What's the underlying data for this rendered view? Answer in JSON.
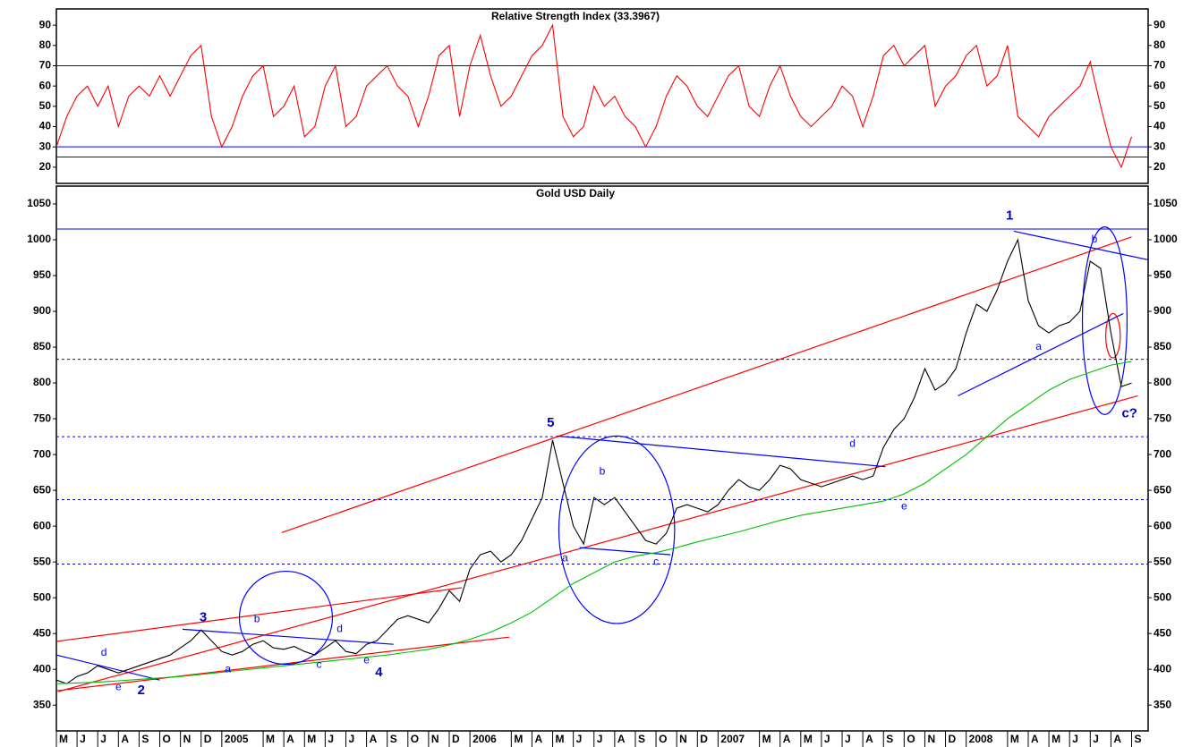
{
  "chart_data": [
    {
      "type": "line",
      "title": "Relative Strength Index (33.3967)",
      "xlim": [
        0,
        52.8
      ],
      "ylim": [
        12,
        98
      ],
      "yticks": [
        20,
        30,
        40,
        50,
        60,
        70,
        80,
        90
      ],
      "hlines": [
        {
          "value": 70,
          "color": "#0000ff",
          "dashed": false
        },
        {
          "value": 30,
          "color": "#0000ff",
          "dashed": false
        },
        {
          "value": 25,
          "color": "#0000ff",
          "dashed": false
        }
      ],
      "series": [
        {
          "name": "RSI",
          "color": "#ff0000",
          "x": [
            0,
            0.5,
            1,
            1.5,
            2,
            2.5,
            3,
            3.5,
            4,
            4.5,
            5,
            5.5,
            6,
            6.5,
            7,
            7.5,
            8,
            8.5,
            9,
            9.5,
            10,
            10.5,
            11,
            11.5,
            12,
            12.5,
            13,
            13.5,
            14,
            14.5,
            15,
            15.5,
            16,
            16.5,
            17,
            17.5,
            18,
            18.5,
            19,
            19.5,
            20,
            20.5,
            21,
            21.5,
            22,
            22.5,
            23,
            23.5,
            24,
            24.5,
            25,
            25.5,
            26,
            26.5,
            27,
            27.5,
            28,
            28.5,
            29,
            29.5,
            30,
            30.5,
            31,
            31.5,
            32,
            32.5,
            33,
            33.5,
            34,
            34.5,
            35,
            35.5,
            36,
            36.5,
            37,
            37.5,
            38,
            38.5,
            39,
            39.5,
            40,
            40.5,
            41,
            41.5,
            42,
            42.5,
            43,
            43.5,
            44,
            44.5,
            45,
            45.5,
            46,
            46.5,
            47,
            47.5,
            48,
            48.5,
            49,
            49.5,
            50,
            50.5,
            51,
            51.5,
            52
          ],
          "values": [
            30,
            45,
            55,
            60,
            50,
            60,
            40,
            55,
            60,
            55,
            65,
            55,
            65,
            75,
            80,
            45,
            30,
            40,
            55,
            65,
            70,
            45,
            50,
            60,
            35,
            40,
            60,
            70,
            40,
            45,
            60,
            65,
            70,
            60,
            55,
            40,
            55,
            75,
            80,
            45,
            70,
            85,
            65,
            50,
            55,
            65,
            75,
            80,
            90,
            45,
            35,
            40,
            60,
            50,
            55,
            45,
            40,
            30,
            40,
            55,
            65,
            60,
            50,
            45,
            55,
            65,
            70,
            50,
            45,
            60,
            70,
            55,
            45,
            40,
            45,
            50,
            60,
            55,
            40,
            55,
            75,
            80,
            70,
            75,
            80,
            50,
            60,
            65,
            75,
            80,
            60,
            65,
            80,
            45,
            40,
            35,
            45,
            50,
            55,
            60,
            72,
            50,
            30,
            20,
            35
          ]
        }
      ]
    },
    {
      "type": "line",
      "title": "Gold USD Daily",
      "xlim": [
        0,
        52.8
      ],
      "ylim": [
        314,
        1075
      ],
      "yticks": [
        350,
        400,
        450,
        500,
        550,
        600,
        650,
        700,
        750,
        800,
        850,
        900,
        950,
        1000,
        1050
      ],
      "xticks": [
        {
          "value": 0,
          "label": "M"
        },
        {
          "value": 1,
          "label": "J"
        },
        {
          "value": 2,
          "label": "J"
        },
        {
          "value": 3,
          "label": "A"
        },
        {
          "value": 4,
          "label": "S"
        },
        {
          "value": 5,
          "label": "O"
        },
        {
          "value": 6,
          "label": "N"
        },
        {
          "value": 7,
          "label": "D"
        },
        {
          "value": 8,
          "label": "2005"
        },
        {
          "value": 10,
          "label": "M"
        },
        {
          "value": 11,
          "label": "A"
        },
        {
          "value": 12,
          "label": "M"
        },
        {
          "value": 13,
          "label": "J"
        },
        {
          "value": 14,
          "label": "J"
        },
        {
          "value": 15,
          "label": "A"
        },
        {
          "value": 16,
          "label": "S"
        },
        {
          "value": 17,
          "label": "O"
        },
        {
          "value": 18,
          "label": "N"
        },
        {
          "value": 19,
          "label": "D"
        },
        {
          "value": 20,
          "label": "2006"
        },
        {
          "value": 22,
          "label": "M"
        },
        {
          "value": 23,
          "label": "A"
        },
        {
          "value": 24,
          "label": "M"
        },
        {
          "value": 25,
          "label": "J"
        },
        {
          "value": 26,
          "label": "J"
        },
        {
          "value": 27,
          "label": "A"
        },
        {
          "value": 28,
          "label": "S"
        },
        {
          "value": 29,
          "label": "O"
        },
        {
          "value": 30,
          "label": "N"
        },
        {
          "value": 31,
          "label": "D"
        },
        {
          "value": 32,
          "label": "2007"
        },
        {
          "value": 34,
          "label": "M"
        },
        {
          "value": 35,
          "label": "A"
        },
        {
          "value": 36,
          "label": "M"
        },
        {
          "value": 37,
          "label": "J"
        },
        {
          "value": 38,
          "label": "J"
        },
        {
          "value": 39,
          "label": "A"
        },
        {
          "value": 40,
          "label": "S"
        },
        {
          "value": 41,
          "label": "O"
        },
        {
          "value": 42,
          "label": "N"
        },
        {
          "value": 43,
          "label": "D"
        },
        {
          "value": 44,
          "label": "2008"
        },
        {
          "value": 46,
          "label": "M"
        },
        {
          "value": 47,
          "label": "A"
        },
        {
          "value": 48,
          "label": "M"
        },
        {
          "value": 49,
          "label": "J"
        },
        {
          "value": 50,
          "label": "J"
        },
        {
          "value": 51,
          "label": "A"
        },
        {
          "value": 52,
          "label": "S"
        }
      ],
      "hlines": [
        {
          "value": 1015,
          "color": "#0000ff",
          "dashed": false
        },
        {
          "value": 833,
          "color": "#0000ff",
          "dashed": true
        },
        {
          "value": 725,
          "color": "#0000ff",
          "dashed": true
        },
        {
          "value": 637,
          "color": "#0000ff",
          "dashed": true
        },
        {
          "value": 547,
          "color": "#0000ff",
          "dashed": true
        }
      ],
      "series": [
        {
          "name": "Gold",
          "color": "#000000",
          "x": [
            0,
            0.5,
            1,
            1.5,
            2,
            2.5,
            3,
            3.5,
            4,
            4.5,
            5,
            5.5,
            6,
            6.5,
            7,
            7.5,
            8,
            8.5,
            9,
            9.5,
            10,
            10.5,
            11,
            11.5,
            12,
            12.5,
            13,
            13.5,
            14,
            14.5,
            15,
            15.5,
            16,
            16.5,
            17,
            17.5,
            18,
            18.5,
            19,
            19.5,
            20,
            20.5,
            21,
            21.5,
            22,
            22.5,
            23,
            23.5,
            24,
            24.5,
            25,
            25.5,
            26,
            26.5,
            27,
            27.5,
            28,
            28.5,
            29,
            29.5,
            30,
            30.5,
            31,
            31.5,
            32,
            32.5,
            33,
            33.5,
            34,
            34.5,
            35,
            35.5,
            36,
            36.5,
            37,
            37.5,
            38,
            38.5,
            39,
            39.5,
            40,
            40.5,
            41,
            41.5,
            42,
            42.5,
            43,
            43.5,
            44,
            44.5,
            45,
            45.5,
            46,
            46.5,
            47,
            47.5,
            48,
            48.5,
            49,
            49.5,
            50,
            50.5,
            51,
            51.5,
            52
          ],
          "values": [
            385,
            380,
            390,
            395,
            405,
            400,
            395,
            400,
            405,
            410,
            415,
            420,
            430,
            440,
            455,
            440,
            425,
            420,
            425,
            435,
            440,
            430,
            428,
            432,
            425,
            420,
            430,
            440,
            425,
            422,
            435,
            440,
            455,
            470,
            475,
            470,
            465,
            485,
            510,
            495,
            540,
            560,
            565,
            550,
            560,
            580,
            610,
            640,
            720,
            660,
            600,
            575,
            640,
            630,
            640,
            620,
            600,
            580,
            575,
            590,
            625,
            630,
            625,
            620,
            630,
            650,
            665,
            655,
            650,
            665,
            685,
            680,
            665,
            660,
            655,
            660,
            665,
            670,
            665,
            670,
            710,
            735,
            750,
            780,
            820,
            790,
            800,
            820,
            870,
            910,
            900,
            930,
            970,
            1000,
            915,
            880,
            870,
            880,
            885,
            900,
            970,
            960,
            870,
            795,
            800
          ]
        },
        {
          "name": "Moving average",
          "color": "#00c000",
          "x": [
            0,
            1,
            2,
            3,
            4,
            5,
            6,
            7,
            8,
            9,
            10,
            11,
            12,
            13,
            14,
            15,
            16,
            17,
            18,
            19,
            20,
            21,
            22,
            23,
            24,
            25,
            26,
            27,
            28,
            29,
            30,
            31,
            32,
            33,
            34,
            35,
            36,
            37,
            38,
            39,
            40,
            41,
            42,
            43,
            44,
            45,
            46,
            47,
            48,
            49,
            50,
            51,
            52
          ],
          "values": [
            380,
            381,
            382,
            384,
            386,
            388,
            390,
            393,
            396,
            399,
            402,
            405,
            408,
            411,
            414,
            417,
            420,
            424,
            428,
            434,
            442,
            452,
            465,
            480,
            500,
            520,
            535,
            550,
            558,
            563,
            570,
            578,
            585,
            592,
            600,
            608,
            615,
            620,
            625,
            630,
            635,
            645,
            660,
            680,
            700,
            725,
            750,
            770,
            790,
            805,
            815,
            825,
            830
          ]
        }
      ],
      "lines": [
        {
          "color": "#ff0000",
          "x": [
            10.9,
            52.0
          ],
          "y": [
            591,
            1004
          ]
        },
        {
          "color": "#ff0000",
          "x": [
            0.1,
            52.3
          ],
          "y": [
            369,
            782
          ]
        },
        {
          "color": "#ff0000",
          "x": [
            0,
            19.6
          ],
          "y": [
            439,
            514
          ]
        },
        {
          "color": "#ff0000",
          "x": [
            0,
            21.9
          ],
          "y": [
            370,
            445
          ]
        },
        {
          "color": "#0000ff",
          "x": [
            0,
            5
          ],
          "y": [
            420,
            385
          ]
        },
        {
          "color": "#0000ff",
          "x": [
            6.1,
            16.3
          ],
          "y": [
            456,
            435
          ]
        },
        {
          "color": "#0000ff",
          "x": [
            24.2,
            40.1
          ],
          "y": [
            726,
            683
          ]
        },
        {
          "color": "#0000ff",
          "x": [
            25.3,
            29.7
          ],
          "y": [
            570,
            560
          ]
        },
        {
          "color": "#0000ff",
          "x": [
            43.6,
            51.6
          ],
          "y": [
            782,
            897
          ]
        },
        {
          "color": "#0000ff",
          "x": [
            46.3,
            52.8
          ],
          "y": [
            1012,
            972
          ]
        }
      ],
      "ellipses": [
        {
          "color": "#0000ff",
          "cx": 11.1,
          "cy": 472,
          "rx": 2.25,
          "ry": 65
        },
        {
          "color": "#0000ff",
          "cx": 27.1,
          "cy": 595,
          "rx": 2.8,
          "ry": 131
        },
        {
          "color": "#0000ff",
          "cx": 50.7,
          "cy": 887,
          "rx": 1.08,
          "ry": 131
        },
        {
          "color": "#ff0000",
          "cx": 51.1,
          "cy": 866,
          "rx": 0.35,
          "ry": 31
        }
      ],
      "annotations": [
        {
          "text": "1",
          "x": 46.1,
          "y": 1033,
          "color": "#0000cc",
          "size": "large"
        },
        {
          "text": "5",
          "x": 23.9,
          "y": 744,
          "color": "#0000cc",
          "size": "large"
        },
        {
          "text": "3",
          "x": 7.1,
          "y": 472,
          "color": "#0000cc",
          "size": "large"
        },
        {
          "text": "4",
          "x": 15.6,
          "y": 395,
          "color": "#0000cc",
          "size": "large"
        },
        {
          "text": "2",
          "x": 4.1,
          "y": 370,
          "color": "#0000cc",
          "size": "large"
        },
        {
          "text": "c?",
          "x": 51.9,
          "y": 757,
          "color": "#0000cc",
          "size": "large"
        },
        {
          "text": "d",
          "x": 2.3,
          "y": 423,
          "color": "#0000ff",
          "size": "small"
        },
        {
          "text": "e",
          "x": 3,
          "y": 375,
          "color": "#0000ff",
          "size": "small"
        },
        {
          "text": "b",
          "x": 9.7,
          "y": 470,
          "color": "#0000ff",
          "size": "small"
        },
        {
          "text": "a",
          "x": 8.3,
          "y": 400,
          "color": "#0000ff",
          "size": "small"
        },
        {
          "text": "c",
          "x": 12.7,
          "y": 406,
          "color": "#0000ff",
          "size": "small"
        },
        {
          "text": "d",
          "x": 13.7,
          "y": 456,
          "color": "#0000ff",
          "size": "small"
        },
        {
          "text": "e",
          "x": 15,
          "y": 412,
          "color": "#0000ff",
          "size": "small"
        },
        {
          "text": "a",
          "x": 24.6,
          "y": 555,
          "color": "#0000ff",
          "size": "small"
        },
        {
          "text": "b",
          "x": 26.4,
          "y": 676,
          "color": "#0000ff",
          "size": "small"
        },
        {
          "text": "c",
          "x": 29,
          "y": 550,
          "color": "#0000ff",
          "size": "small"
        },
        {
          "text": "d",
          "x": 38.5,
          "y": 715,
          "color": "#0000ff",
          "size": "small"
        },
        {
          "text": "e",
          "x": 41,
          "y": 627,
          "color": "#0000ff",
          "size": "small"
        },
        {
          "text": "a",
          "x": 47.5,
          "y": 850,
          "color": "#0000ff",
          "size": "small"
        },
        {
          "text": "b",
          "x": 50.2,
          "y": 1000,
          "color": "#0000ff",
          "size": "small"
        }
      ]
    }
  ]
}
